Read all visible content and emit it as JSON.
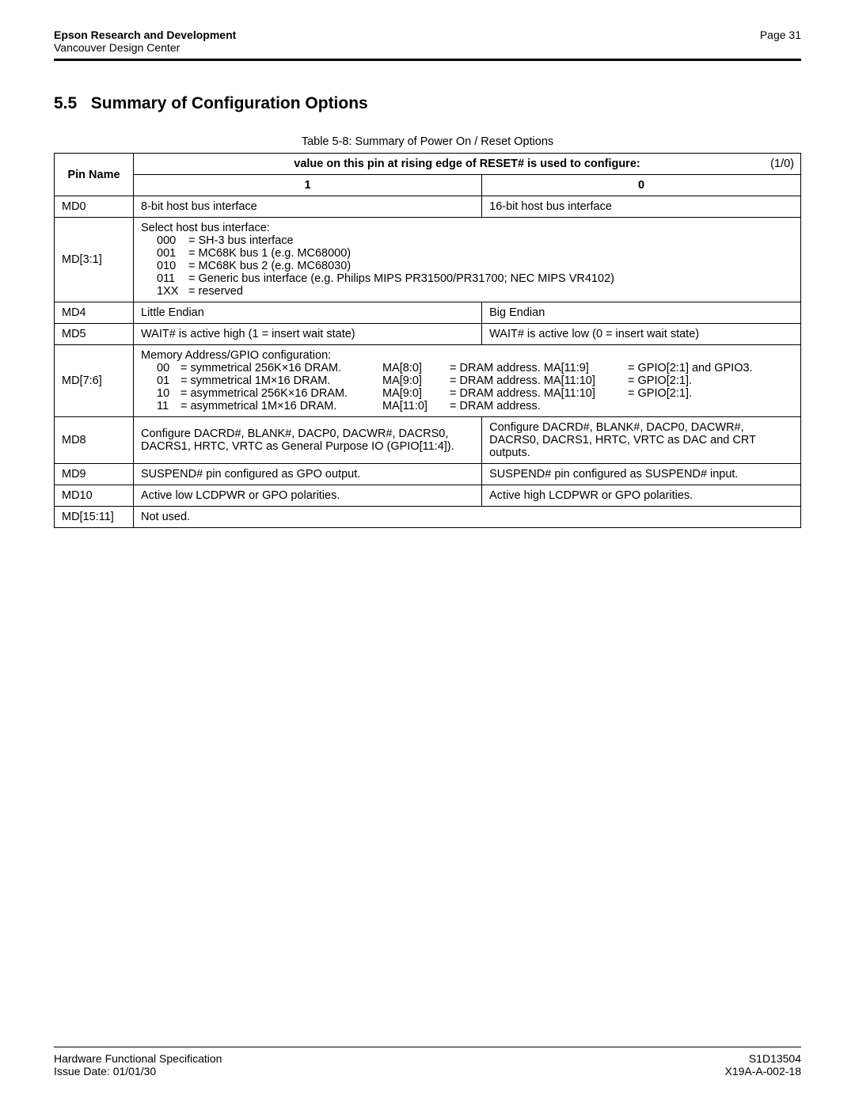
{
  "header": {
    "org": "Epson Research and Development",
    "subOrg": "Vancouver Design Center",
    "pageLabel": "Page 31"
  },
  "section": {
    "number": "5.5",
    "title": "Summary of Configuration Options"
  },
  "table": {
    "caption": "Table 5-8: Summary of Power On / Reset Options",
    "headerPin": "Pin Name",
    "headerValue": "value on this pin at rising edge of RESET# is used to configure:",
    "headerTag": "(1/0)",
    "col1": "1",
    "col0": "0",
    "rows": {
      "md0": {
        "pin": "MD0",
        "v1": "8-bit host bus interface",
        "v0": "16-bit host bus interface"
      },
      "md31": {
        "pin": "MD[3:1]",
        "intro": "Select host bus interface:",
        "l0c": "000",
        "l0t": "= SH-3 bus interface",
        "l1c": "001",
        "l1t": "= MC68K bus 1 (e.g. MC68000)",
        "l2c": "010",
        "l2t": "= MC68K bus 2 (e.g. MC68030)",
        "l3c": "011",
        "l3t": "= Generic bus interface (e.g. Philips MIPS PR31500/PR31700; NEC MIPS VR4102)",
        "l4c": "1XX",
        "l4t": "= reserved"
      },
      "md4": {
        "pin": "MD4",
        "v1": "Little Endian",
        "v0": "Big Endian"
      },
      "md5": {
        "pin": "MD5",
        "v1": "WAIT# is active high (1 = insert wait state)",
        "v0": "WAIT# is active low (0 = insert wait state)"
      },
      "md76": {
        "pin": "MD[7:6]",
        "intro": "Memory Address/GPIO configuration:",
        "r0a": "00",
        "r0b": "= symmetrical 256K×16 DRAM.",
        "r0c": "MA[8:0]",
        "r0d": "= DRAM address. MA[11:9]",
        "r0e": "= GPIO[2:1] and GPIO3.",
        "r1a": "01",
        "r1b": "= symmetrical 1M×16 DRAM.",
        "r1c": "MA[9:0]",
        "r1d": "= DRAM address. MA[11:10]",
        "r1e": "= GPIO[2:1].",
        "r2a": "10",
        "r2b": "= asymmetrical 256K×16 DRAM.",
        "r2c": "MA[9:0]",
        "r2d": "= DRAM address. MA[11:10]",
        "r2e": "= GPIO[2:1].",
        "r3a": "11",
        "r3b": "= asymmetrical 1M×16 DRAM.",
        "r3c": "MA[11:0]",
        "r3d": "= DRAM address.",
        "r3e": ""
      },
      "md8": {
        "pin": "MD8",
        "v1": "Configure DACRD#, BLANK#, DACP0, DACWR#, DACRS0, DACRS1, HRTC, VRTC as General Purpose IO (GPIO[11:4]).",
        "v0": "Configure DACRD#, BLANK#, DACP0, DACWR#, DACRS0, DACRS1, HRTC, VRTC as DAC and CRT outputs."
      },
      "md9": {
        "pin": "MD9",
        "v1": "SUSPEND# pin configured as GPO output.",
        "v0": "SUSPEND# pin configured as SUSPEND# input."
      },
      "md10": {
        "pin": "MD10",
        "v1": "Active low LCDPWR or GPO polarities.",
        "v0": "Active high LCDPWR or GPO polarities."
      },
      "md1511": {
        "pin": "MD[15:11]",
        "v": "Not used."
      }
    }
  },
  "footer": {
    "leftTop": "Hardware Functional Specification",
    "leftBottom": "Issue Date: 01/01/30",
    "rightTop": "S1D13504",
    "rightBottom": "X19A-A-002-18"
  }
}
